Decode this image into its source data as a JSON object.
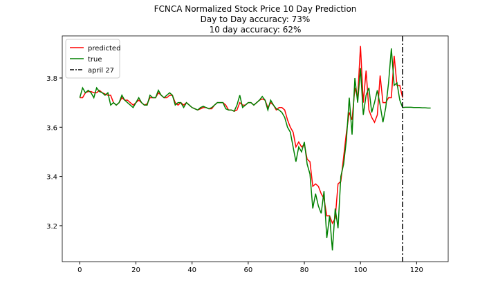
{
  "chart_data": {
    "type": "line",
    "title": "FCNCA Normalized Stock Price 10 Day Prediction",
    "subtitle": [
      "Day to Day accuracy: 73%",
      "10 day accuracy: 62%"
    ],
    "x": [
      0,
      1,
      2,
      3,
      4,
      5,
      6,
      7,
      8,
      9,
      10,
      11,
      12,
      13,
      14,
      15,
      16,
      17,
      18,
      19,
      20,
      21,
      22,
      23,
      24,
      25,
      26,
      27,
      28,
      29,
      30,
      31,
      32,
      33,
      34,
      35,
      36,
      37,
      38,
      39,
      40,
      41,
      42,
      43,
      44,
      45,
      46,
      47,
      48,
      49,
      50,
      51,
      52,
      53,
      54,
      55,
      56,
      57,
      58,
      59,
      60,
      61,
      62,
      63,
      64,
      65,
      66,
      67,
      68,
      69,
      70,
      71,
      72,
      73,
      74,
      75,
      76,
      77,
      78,
      79,
      80,
      81,
      82,
      83,
      84,
      85,
      86,
      87,
      88,
      89,
      90,
      91,
      92,
      93,
      94,
      95,
      96,
      97,
      98,
      99,
      100,
      101,
      102,
      103,
      104,
      105,
      106,
      107,
      108,
      109,
      110,
      111,
      112,
      113,
      114,
      115,
      116,
      117,
      118,
      119,
      120,
      121,
      122,
      123,
      124,
      125
    ],
    "series": [
      {
        "name": "predicted",
        "color": "#ff0000",
        "values": [
          3.72,
          3.72,
          3.74,
          3.745,
          3.745,
          3.74,
          3.74,
          3.75,
          3.74,
          3.735,
          3.73,
          3.73,
          3.7,
          3.69,
          3.7,
          3.72,
          3.71,
          3.71,
          3.7,
          3.69,
          3.7,
          3.71,
          3.7,
          3.69,
          3.695,
          3.72,
          3.72,
          3.72,
          3.74,
          3.73,
          3.72,
          3.72,
          3.73,
          3.73,
          3.7,
          3.69,
          3.7,
          3.69,
          3.7,
          3.69,
          3.68,
          3.675,
          3.67,
          3.675,
          3.68,
          3.68,
          3.675,
          3.675,
          3.69,
          3.7,
          3.7,
          3.7,
          3.69,
          3.67,
          3.67,
          3.665,
          3.67,
          3.7,
          3.69,
          3.69,
          3.7,
          3.7,
          3.69,
          3.7,
          3.71,
          3.715,
          3.71,
          3.68,
          3.7,
          3.69,
          3.67,
          3.68,
          3.68,
          3.67,
          3.63,
          3.6,
          3.58,
          3.52,
          3.54,
          3.52,
          3.53,
          3.47,
          3.46,
          3.36,
          3.37,
          3.36,
          3.33,
          3.31,
          3.24,
          3.24,
          3.21,
          3.23,
          3.37,
          3.38,
          3.48,
          3.58,
          3.66,
          3.63,
          3.76,
          3.72,
          3.93,
          3.7,
          3.83,
          3.67,
          3.64,
          3.62,
          3.65,
          3.81,
          3.7,
          3.7,
          3.72,
          3.72,
          3.89,
          3.77,
          3.77,
          3.72,
          null,
          null,
          null,
          null,
          null,
          null,
          null,
          null,
          null,
          null
        ]
      },
      {
        "name": "true",
        "color": "#008000",
        "values": [
          3.72,
          3.76,
          3.74,
          3.75,
          3.74,
          3.72,
          3.76,
          3.745,
          3.74,
          3.73,
          3.74,
          3.69,
          3.7,
          3.69,
          3.7,
          3.73,
          3.71,
          3.7,
          3.69,
          3.68,
          3.7,
          3.72,
          3.7,
          3.69,
          3.69,
          3.73,
          3.72,
          3.72,
          3.75,
          3.73,
          3.72,
          3.73,
          3.74,
          3.73,
          3.69,
          3.7,
          3.7,
          3.68,
          3.7,
          3.69,
          3.68,
          3.675,
          3.67,
          3.68,
          3.685,
          3.68,
          3.675,
          3.68,
          3.69,
          3.7,
          3.7,
          3.7,
          3.675,
          3.67,
          3.67,
          3.665,
          3.69,
          3.73,
          3.68,
          3.69,
          3.7,
          3.7,
          3.69,
          3.7,
          3.71,
          3.725,
          3.71,
          3.67,
          3.71,
          3.69,
          3.675,
          3.67,
          3.66,
          3.64,
          3.6,
          3.58,
          3.52,
          3.46,
          3.52,
          3.5,
          3.54,
          3.45,
          3.41,
          3.27,
          3.33,
          3.28,
          3.25,
          3.34,
          3.15,
          3.24,
          3.1,
          3.27,
          3.19,
          3.4,
          3.45,
          3.55,
          3.72,
          3.57,
          3.8,
          3.7,
          3.84,
          3.65,
          3.73,
          3.76,
          3.66,
          3.7,
          3.75,
          3.69,
          3.62,
          3.68,
          3.78,
          3.92,
          3.77,
          3.78,
          3.71,
          3.68,
          3.681,
          3.681,
          3.681,
          3.68,
          3.68,
          3.68,
          3.679,
          3.679,
          3.678,
          3.678
        ]
      }
    ],
    "vline": {
      "x": 115,
      "label": "april 27",
      "color": "#000000"
    },
    "xlim": [
      -6.25,
      131.25
    ],
    "ylim": [
      3.054,
      3.971
    ],
    "xticks": [
      0,
      20,
      40,
      60,
      80,
      100,
      120
    ],
    "yticks": [
      3.2,
      3.4,
      3.6,
      3.8
    ],
    "legend": "upper left",
    "grid": false
  }
}
